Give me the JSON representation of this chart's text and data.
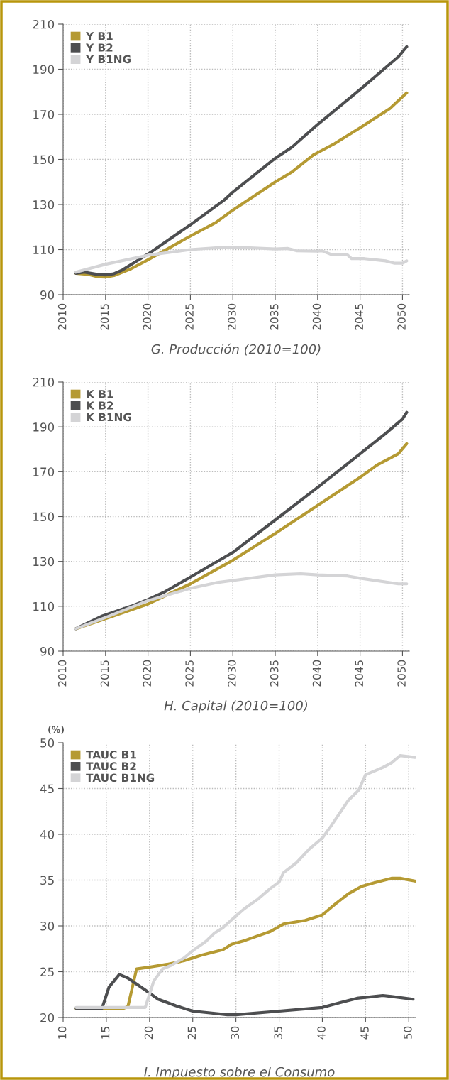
{
  "chart_data": [
    {
      "type": "line",
      "title": "G. Producción (2010=100)",
      "xlim": [
        2010,
        2050.8
      ],
      "xticks": [
        2010,
        2015,
        2020,
        2025,
        2030,
        2035,
        2040,
        2045,
        2050
      ],
      "ylim": [
        90,
        210
      ],
      "yticks": [
        90,
        110,
        130,
        150,
        170,
        190,
        210
      ],
      "grid": true,
      "legend": "top left",
      "line_style": "solid",
      "series": [
        {
          "name": "Y B1",
          "color": "#b59a33",
          "x": [
            2011.5,
            2013,
            2014,
            2015,
            2016,
            2018,
            2020,
            2025,
            2028,
            2030,
            2035,
            2037,
            2039.5,
            2040,
            2042,
            2045,
            2048.5,
            2050.5
          ],
          "values": [
            99.5,
            99,
            98,
            97.8,
            98.5,
            101.5,
            105.5,
            116,
            122,
            127.5,
            140,
            144.5,
            152,
            153,
            157,
            164,
            172.5,
            179.5
          ]
        },
        {
          "name": "Y B2",
          "color": "#4d4e50",
          "x": [
            2011.5,
            2012.5,
            2014,
            2015,
            2016,
            2017,
            2020,
            2025,
            2029,
            2030,
            2035,
            2037,
            2040,
            2045,
            2049.5,
            2050.5
          ],
          "values": [
            99.5,
            100,
            99,
            98.8,
            99.3,
            101,
            108,
            121,
            132,
            135.5,
            150.5,
            155.5,
            165.5,
            181,
            195.5,
            200
          ]
        },
        {
          "name": "Y B1NG",
          "color": "#d4d4d6",
          "x": [
            2011.5,
            2015,
            2020,
            2025,
            2028,
            2032,
            2035,
            2036.5,
            2037.5,
            2040,
            2040.5,
            2041.5,
            2043.5,
            2044,
            2045.5,
            2048,
            2049,
            2050,
            2050.5
          ],
          "values": [
            100,
            103.5,
            107.5,
            110,
            110.8,
            110.8,
            110.3,
            110.5,
            109.5,
            109.3,
            109.5,
            108,
            107.7,
            106,
            106,
            105,
            104,
            104,
            105
          ]
        }
      ]
    },
    {
      "type": "line",
      "title": "H. Capital (2010=100)",
      "xlim": [
        2010,
        2050.8
      ],
      "xticks": [
        2010,
        2015,
        2020,
        2025,
        2030,
        2035,
        2040,
        2045,
        2050
      ],
      "ylim": [
        90,
        210
      ],
      "yticks": [
        90,
        110,
        130,
        150,
        170,
        190,
        210
      ],
      "grid": true,
      "legend": "top left",
      "line_style": "solid",
      "series": [
        {
          "name": "K B1",
          "color": "#b59a33",
          "x": [
            2011.5,
            2015,
            2020,
            2025,
            2030,
            2035,
            2040,
            2045,
            2047,
            2049.5,
            2050.5
          ],
          "values": [
            100,
            104.5,
            111,
            120,
            130.5,
            142.5,
            155,
            167.5,
            173,
            178,
            182.5
          ]
        },
        {
          "name": "K B2",
          "color": "#4d4e50",
          "x": [
            2011.5,
            2014.5,
            2018,
            2020,
            2022,
            2025,
            2030,
            2035,
            2040,
            2045,
            2048,
            2050,
            2050.5
          ],
          "values": [
            100,
            105.5,
            110,
            113,
            116.5,
            123,
            134,
            148.5,
            163,
            178,
            187,
            193.5,
            196.5
          ]
        },
        {
          "name": "K B1NG",
          "color": "#d4d4d6",
          "x": [
            2011.5,
            2015,
            2020,
            2025,
            2028,
            2030,
            2035,
            2038,
            2040,
            2043.5,
            2045,
            2049.5,
            2050.5
          ],
          "values": [
            100,
            105,
            112.5,
            118,
            120.5,
            121.5,
            124,
            124.5,
            124,
            123.5,
            122.5,
            120,
            120
          ]
        }
      ]
    },
    {
      "type": "line",
      "title": "I. Impuesto sobre el Consumo",
      "ylabel": "(%)",
      "xlim": [
        10,
        50.8
      ],
      "xticks": [
        10,
        15,
        20,
        25,
        30,
        35,
        40,
        45,
        50
      ],
      "ylim": [
        20,
        50
      ],
      "yticks": [
        20,
        25,
        30,
        35,
        40,
        45,
        50
      ],
      "grid": true,
      "legend": "top left",
      "line_style": "solid",
      "series": [
        {
          "name": "TAUC B1",
          "color": "#b59a33",
          "x": [
            11.5,
            17,
            17.5,
            18.5,
            20,
            22,
            24,
            26,
            28.5,
            29.5,
            31,
            34,
            35.5,
            38,
            40,
            41.5,
            43,
            44.5,
            46,
            48,
            49,
            50.7
          ],
          "values": [
            21,
            21,
            21.2,
            25.3,
            25.5,
            25.8,
            26.2,
            26.8,
            27.4,
            28,
            28.4,
            29.4,
            30.2,
            30.6,
            31.2,
            32.4,
            33.5,
            34.3,
            34.7,
            35.2,
            35.2,
            34.9
          ]
        },
        {
          "name": "TAUC B2",
          "color": "#4d4e50",
          "x": [
            11.5,
            14.5,
            15.3,
            16.5,
            17.5,
            19.5,
            21,
            23,
            25,
            27,
            29,
            30,
            35,
            40,
            42,
            44,
            46,
            47,
            48,
            50.5
          ],
          "values": [
            21,
            21,
            23.3,
            24.7,
            24.3,
            23,
            22,
            21.3,
            20.7,
            20.5,
            20.3,
            20.3,
            20.7,
            21.1,
            21.6,
            22.1,
            22.3,
            22.4,
            22.3,
            22
          ]
        },
        {
          "name": "TAUC B1NG",
          "color": "#d4d4d6",
          "x": [
            11.5,
            19.5,
            20.5,
            21.5,
            22.5,
            24,
            25,
            26.5,
            27.5,
            28.5,
            30,
            31,
            32.5,
            34,
            35,
            35.5,
            37,
            38.5,
            40,
            41,
            43,
            44.2,
            45,
            47,
            48,
            49,
            50.7
          ],
          "values": [
            21.1,
            21.1,
            24,
            25.3,
            25.7,
            26.5,
            27.3,
            28.3,
            29.2,
            29.8,
            31.1,
            31.9,
            32.9,
            34.1,
            34.8,
            35.8,
            36.9,
            38.4,
            39.6,
            40.9,
            43.7,
            44.8,
            46.5,
            47.3,
            47.8,
            48.6,
            48.4
          ]
        }
      ]
    }
  ]
}
